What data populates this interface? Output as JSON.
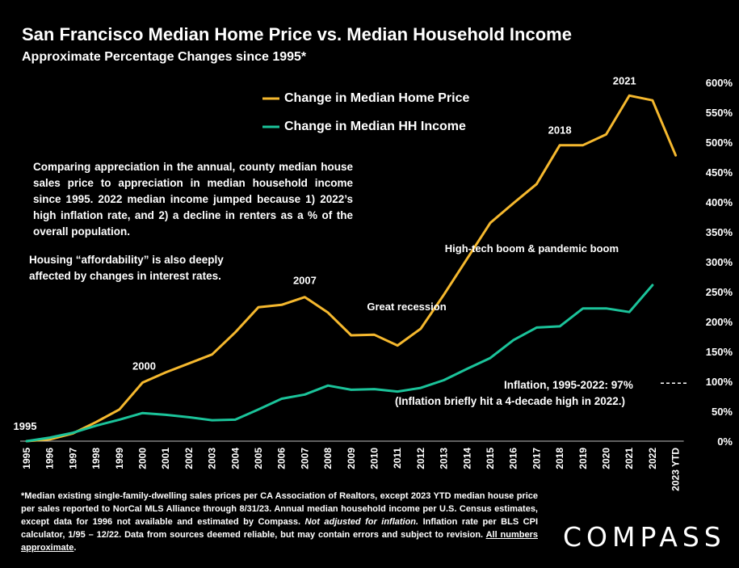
{
  "chart_data": {
    "type": "line",
    "title": "San Francisco Median Home Price vs. Median Household Income",
    "subtitle": "Approximate Percentage Changes since 1995*",
    "x": [
      "1995",
      "1996",
      "1997",
      "1998",
      "1999",
      "2000",
      "2001",
      "2002",
      "2003",
      "2004",
      "2005",
      "2006",
      "2007",
      "2008",
      "2009",
      "2010",
      "2011",
      "2012",
      "2013",
      "2014",
      "2015",
      "2016",
      "2017",
      "2018",
      "2019",
      "2020",
      "2021",
      "2022",
      "2023 YTD"
    ],
    "y_ticks": [
      "0%",
      "50%",
      "100%",
      "150%",
      "200%",
      "250%",
      "300%",
      "350%",
      "400%",
      "450%",
      "500%",
      "550%",
      "600%"
    ],
    "ylim": [
      0,
      600
    ],
    "series": [
      {
        "name": "Change in Median Home Price",
        "color": "#F5B82E",
        "values": [
          0,
          3,
          13,
          32,
          53,
          98,
          115,
          130,
          145,
          182,
          224,
          228,
          241,
          215,
          177,
          178,
          160,
          188,
          245,
          305,
          365,
          398,
          430,
          495,
          495,
          513,
          578,
          570,
          478
        ]
      },
      {
        "name": "Change in Median HH Income",
        "color": "#1BC39A",
        "values": [
          0,
          6,
          14,
          26,
          36,
          47,
          44,
          40,
          35,
          36,
          53,
          71,
          78,
          93,
          86,
          87,
          83,
          89,
          102,
          121,
          139,
          169,
          190,
          192,
          222,
          222,
          216,
          261,
          null
        ]
      }
    ],
    "annotations": [
      {
        "text": "1995",
        "x": "1995"
      },
      {
        "text": "2000",
        "x": "2000"
      },
      {
        "text": "2007",
        "x": "2007"
      },
      {
        "text": "Great recession",
        "x": "2010"
      },
      {
        "text": "High-tech boom & pandemic boom",
        "x": "2017"
      },
      {
        "text": "2018",
        "x": "2018"
      },
      {
        "text": "2021",
        "x": "2021"
      }
    ],
    "inflation": {
      "label": "Inflation, 1995-2022:  97%",
      "note": "(Inflation briefly hit a 4-decade high in 2022.)",
      "value": 97
    },
    "grid": false,
    "legend_position": "top-center"
  },
  "notes": {
    "paragraph1": "Comparing appreciation in the annual, county median house sales price to appreciation in median household income since 1995. 2022 median income jumped because 1) 2022’s high inflation rate, and 2) a decline in renters as a % of the overall population.",
    "paragraph2": "Housing “affordability” is also deeply affected by changes in interest rates."
  },
  "footnote": {
    "part1": "*Median existing single-family-dwelling sales prices per CA Association of Realtors, except 2023 YTD median house price per sales reported to NorCal MLS Alliance through 8/31/23. Annual median household income per U.S. Census estimates, except data for 1996 not available and estimated by Compass. ",
    "italic": "Not adjusted for inflation.",
    "part2": " Inflation rate per BLS CPI calculator, 1/95 – 12/22. Data from sources deemed reliable, but may contain errors and subject to revision. ",
    "underline": "All numbers approximate",
    "end": "."
  },
  "brand": {
    "logo_text": "COMPASS"
  },
  "colors": {
    "background": "#000000",
    "text": "#FFFFFF"
  }
}
